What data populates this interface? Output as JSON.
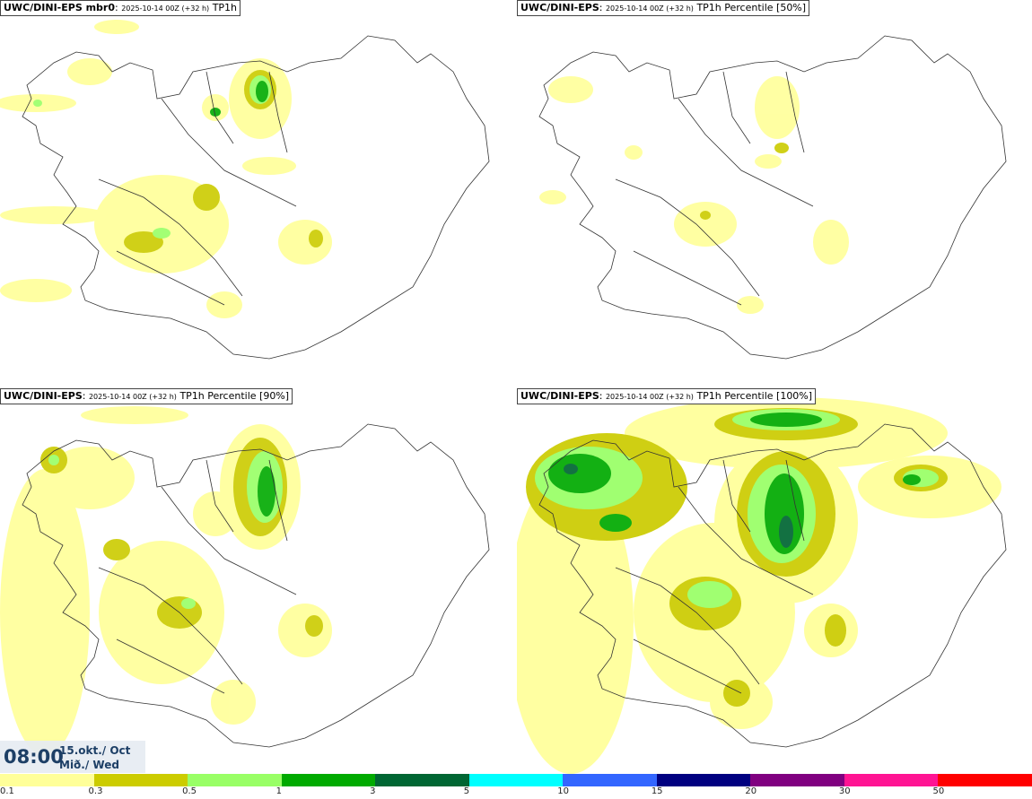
{
  "panels": [
    {
      "model": "UWC/DINI-EPS mbr0",
      "run": "2025-10-14 00Z (+32 h)",
      "field": "TP1h"
    },
    {
      "model": "UWC/DINI-EPS",
      "run": "2025-10-14 00Z (+32 h)",
      "field": "TP1h Percentile [50%]"
    },
    {
      "model": "UWC/DINI-EPS",
      "run": "2025-10-14 00Z (+32 h)",
      "field": "TP1h Percentile [90%]"
    },
    {
      "model": "UWC/DINI-EPS",
      "run": "2025-10-14 00Z (+32 h)",
      "field": "TP1h Percentile [100%]"
    }
  ],
  "valid_time": {
    "time": "08:00",
    "date": "15.okt./ Oct",
    "day": "Mið./ Wed"
  },
  "legend": {
    "colors": [
      "#ffff99",
      "#cccc00",
      "#99ff66",
      "#00aa00",
      "#006633",
      "#00ffff",
      "#3366ff",
      "#000080",
      "#800080",
      "#ff1493",
      "#ff0000"
    ],
    "labels": [
      "0.1",
      "0.3",
      "0.5",
      "1",
      "3",
      "5",
      "10",
      "15",
      "20",
      "30",
      "50"
    ]
  }
}
